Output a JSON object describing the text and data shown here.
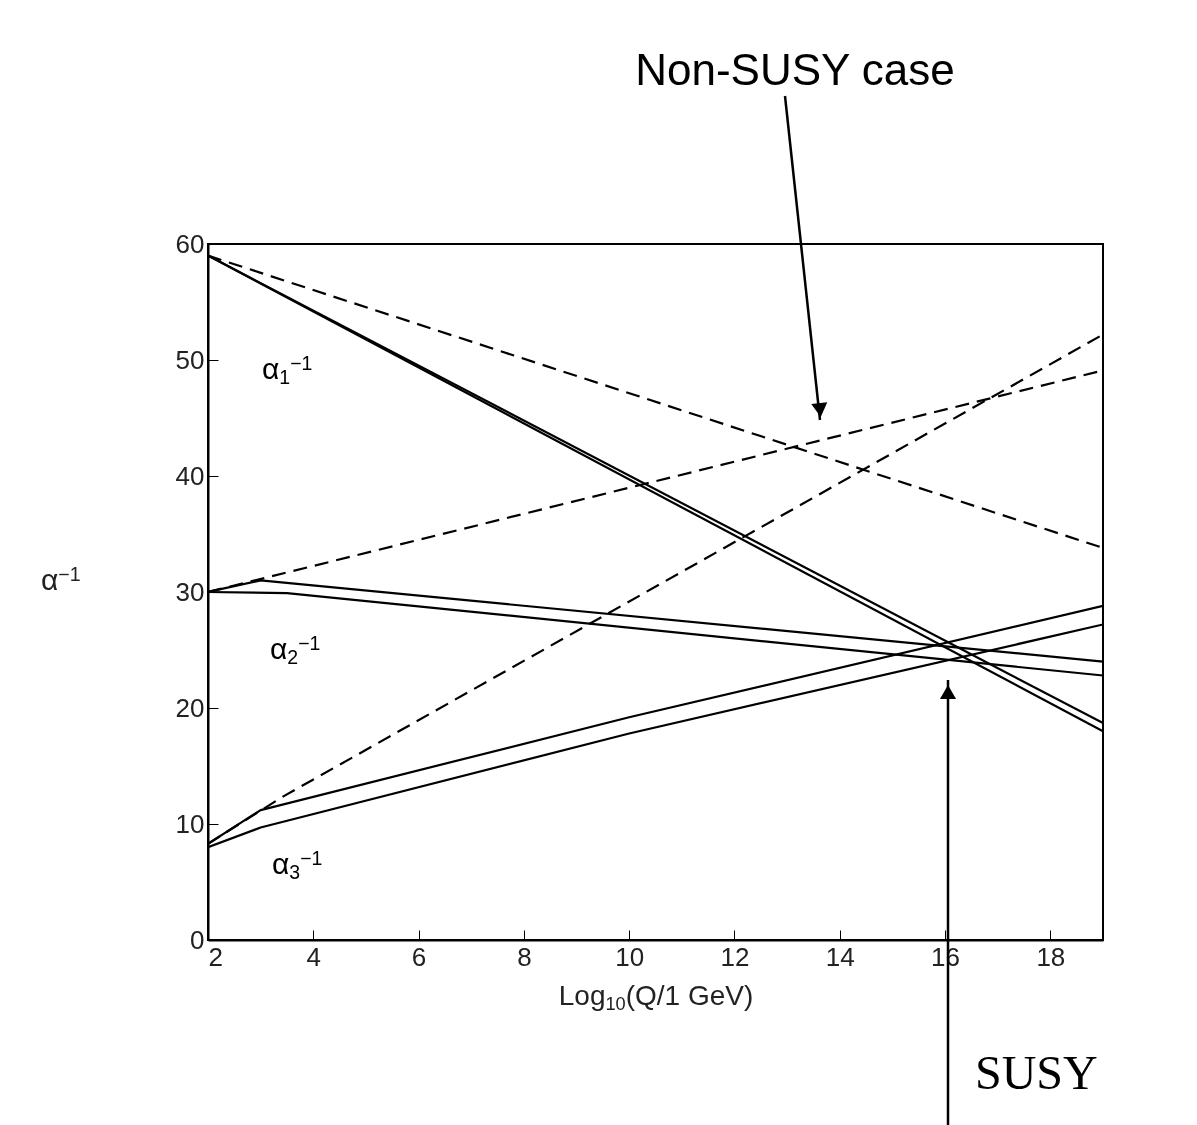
{
  "chart_data": {
    "type": "line",
    "xlabel": "Log$_{10}$(Q/1 GeV)",
    "ylabel": "α$^{−1}$",
    "xlim": [
      2,
      19
    ],
    "xticks": [
      2,
      4,
      6,
      8,
      10,
      12,
      14,
      16,
      18
    ],
    "ylim": [
      0,
      60
    ],
    "yticks": [
      0,
      10,
      20,
      30,
      40,
      50,
      60
    ],
    "grid": false,
    "marker": "none",
    "series": [
      {
        "color": "#000000",
        "line_style": "dashed",
        "x": [
          2,
          19
        ],
        "values": [
          59,
          33.8
        ]
      },
      {
        "color": "#000000",
        "line_style": "dashed",
        "x": [
          2,
          19
        ],
        "values": [
          30,
          49.1
        ]
      },
      {
        "color": "#000000",
        "line_style": "dashed",
        "x": [
          2,
          3.4,
          19
        ],
        "values": [
          8.3,
          12.3,
          52.2
        ]
      },
      {
        "color": "#000000",
        "line_style": "solid",
        "x": [
          2,
          19
        ],
        "values": [
          59,
          18.7
        ]
      },
      {
        "color": "#000000",
        "line_style": "solid",
        "x": [
          2,
          19
        ],
        "values": [
          59,
          18
        ]
      },
      {
        "color": "#000000",
        "line_style": "solid",
        "x": [
          2,
          3,
          19
        ],
        "values": [
          30,
          31,
          24
        ]
      },
      {
        "color": "#000000",
        "line_style": "solid",
        "x": [
          2,
          3.5,
          19
        ],
        "values": [
          30,
          29.9,
          22.8
        ]
      },
      {
        "color": "#000000",
        "line_style": "solid",
        "x": [
          2,
          3,
          10,
          19
        ],
        "values": [
          8.3,
          11.2,
          19.2,
          28.8
        ]
      },
      {
        "color": "#000000",
        "line_style": "solid",
        "x": [
          2,
          3,
          10,
          19
        ],
        "values": [
          8,
          9.7,
          17.8,
          27.2
        ]
      }
    ],
    "annotations": [
      "α$_{1}$$^{−1}$",
      "α$_{2}$$^{−1}$",
      "α$_{3}$$^{−1}$",
      "Non-SUSY case",
      "SUSY"
    ]
  }
}
